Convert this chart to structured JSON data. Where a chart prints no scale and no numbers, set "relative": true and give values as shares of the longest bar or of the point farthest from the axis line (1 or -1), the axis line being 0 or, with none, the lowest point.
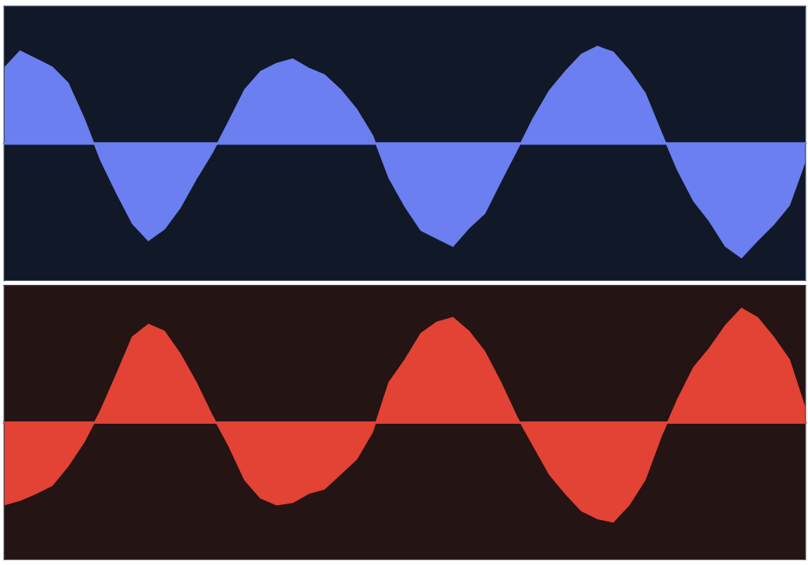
{
  "chart_data": [
    {
      "type": "area",
      "relative": true,
      "ref_lines": [
        {
          "axis": "y",
          "value": 0,
          "color": "#6b7ff0"
        }
      ],
      "categories": [
        null,
        null,
        null,
        null,
        null,
        null,
        null,
        null,
        null,
        null,
        null,
        null,
        null,
        null,
        null,
        null,
        null,
        null,
        null,
        null,
        null,
        null,
        null,
        null,
        null,
        null,
        null,
        null,
        null,
        null,
        null,
        null,
        null,
        null,
        null,
        null,
        null,
        null,
        null,
        null,
        null,
        null,
        null,
        null,
        null,
        null,
        null,
        null,
        null,
        null,
        null
      ],
      "series": [
        {
          "color": "#6b7ff0",
          "values": [
            0.66,
            0.81,
            0.74,
            0.67,
            0.53,
            0.22,
            -0.14,
            -0.43,
            -0.7,
            -0.85,
            -0.75,
            -0.56,
            -0.31,
            -0.08,
            0.19,
            0.47,
            0.63,
            0.7,
            0.74,
            0.66,
            0.6,
            0.47,
            0.3,
            0.07,
            -0.3,
            -0.55,
            -0.76,
            -0.83,
            -0.9,
            -0.74,
            -0.61,
            -0.33,
            -0.06,
            0.22,
            0.46,
            0.63,
            0.78,
            0.85,
            0.8,
            0.64,
            0.44,
            0.1,
            -0.23,
            -0.5,
            -0.68,
            -0.9,
            -1.0,
            -0.85,
            -0.71,
            -0.54,
            -0.15
          ]
        }
      ]
    },
    {
      "type": "area",
      "relative": true,
      "ref_lines": [
        {
          "axis": "y",
          "value": 0,
          "color": "#e24334"
        }
      ],
      "categories": [
        null,
        null,
        null,
        null,
        null,
        null,
        null,
        null,
        null,
        null,
        null,
        null,
        null,
        null,
        null,
        null,
        null,
        null,
        null,
        null,
        null,
        null,
        null,
        null,
        null,
        null,
        null,
        null,
        null,
        null,
        null,
        null,
        null,
        null,
        null,
        null,
        null,
        null,
        null,
        null,
        null,
        null,
        null,
        null,
        null,
        null,
        null,
        null,
        null,
        null,
        null
      ],
      "series": [
        {
          "color": "#e24334",
          "values": [
            -0.72,
            -0.68,
            -0.62,
            -0.55,
            -0.38,
            -0.17,
            0.1,
            0.42,
            0.75,
            0.86,
            0.8,
            0.6,
            0.35,
            0.06,
            -0.2,
            -0.5,
            -0.66,
            -0.72,
            -0.7,
            -0.62,
            -0.58,
            -0.45,
            -0.32,
            -0.08,
            0.35,
            0.55,
            0.78,
            0.88,
            0.92,
            0.8,
            0.62,
            0.35,
            0.05,
            -0.2,
            -0.45,
            -0.62,
            -0.77,
            -0.84,
            -0.87,
            -0.72,
            -0.5,
            -0.12,
            0.2,
            0.48,
            0.65,
            0.85,
            1.0,
            0.92,
            0.75,
            0.55,
            0.12
          ]
        }
      ]
    }
  ]
}
